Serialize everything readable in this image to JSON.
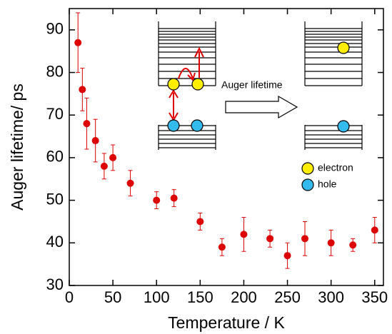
{
  "chart_data": {
    "type": "scatter",
    "xlabel": "Temperature / K",
    "ylabel": "Auger lifetime/ ps",
    "x": [
      10,
      15,
      20,
      30,
      40,
      50,
      70,
      100,
      120,
      150,
      175,
      200,
      230,
      250,
      270,
      300,
      325,
      350
    ],
    "values": [
      87,
      76,
      68,
      64,
      58,
      60,
      54,
      50,
      50.5,
      45,
      39,
      42,
      41,
      37,
      41,
      40,
      39.5,
      43
    ],
    "errors": [
      7,
      5,
      6,
      5,
      3,
      3,
      3,
      2,
      2,
      2,
      2,
      4,
      2,
      3,
      4,
      3,
      1.5,
      3
    ],
    "color": "#dd0000",
    "xlim": [
      0,
      360
    ],
    "ylim": [
      30,
      95
    ],
    "xticks": [
      0,
      50,
      100,
      150,
      200,
      250,
      300,
      350
    ],
    "yticks": [
      30,
      40,
      50,
      60,
      70,
      80,
      90
    ],
    "annotations": [
      "Auger lifetime",
      "electron",
      "hole"
    ]
  }
}
